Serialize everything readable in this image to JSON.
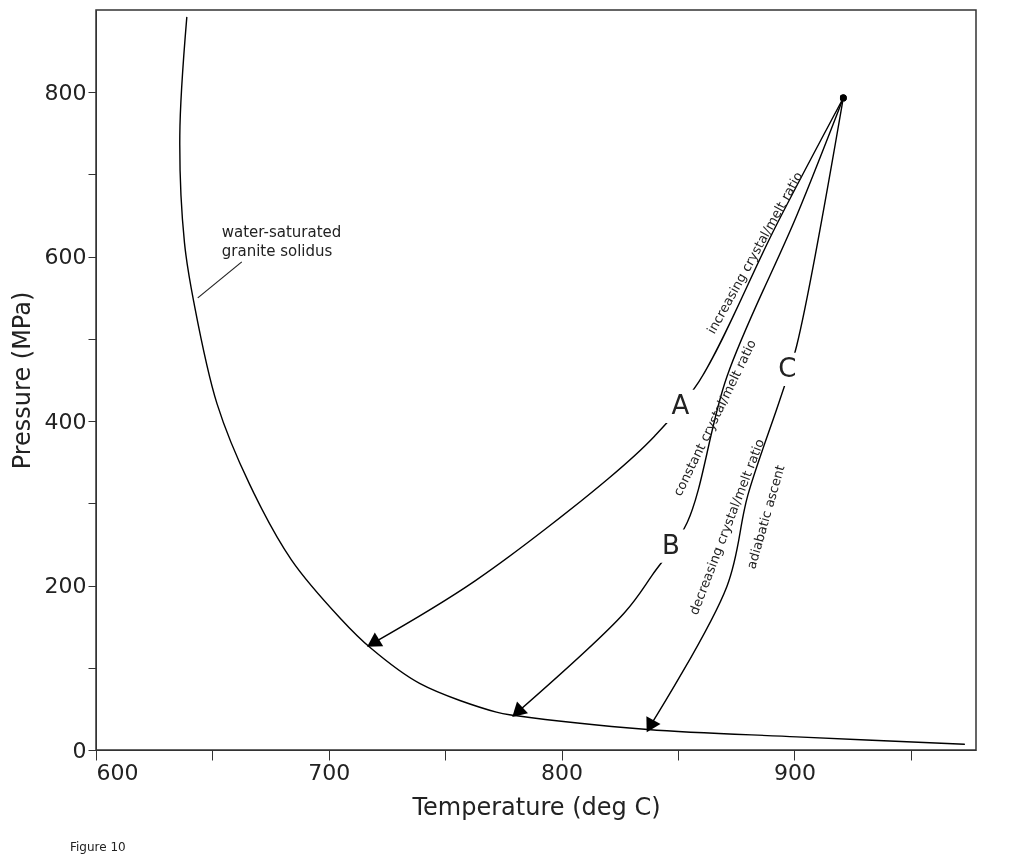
{
  "chart_data": {
    "type": "line",
    "xlabel": "Temperature (deg C)",
    "ylabel": "Pressure (MPa)",
    "xlim": [
      600,
      978
    ],
    "ylim": [
      0,
      900
    ],
    "xticks": [
      600,
      {
        "value": 650,
        "label": null
      },
      700,
      {
        "value": 750,
        "label": null
      },
      800,
      {
        "value": 850,
        "label": null
      },
      900,
      {
        "value": 950,
        "label": null
      }
    ],
    "yticks": [
      0,
      {
        "value": 100,
        "label": null
      },
      200,
      {
        "value": 300,
        "label": null
      },
      400,
      {
        "value": 500,
        "label": null
      },
      600,
      {
        "value": 700,
        "label": null
      },
      800
    ],
    "grid": false,
    "legend": false,
    "marker": "none",
    "line_style": "solid",
    "series": [
      {
        "color": "#000000",
        "x": [
          639,
          636,
          638,
          642,
          652,
          666,
          684,
          705,
          718,
          739,
          772,
          780,
          837,
          901,
          973
        ],
        "values": [
          891,
          747,
          617,
          545,
          421,
          323,
          231,
          160,
          124,
          81,
          46,
          42,
          25,
          16,
          7
        ]
      },
      {
        "color": "#000000",
        "x": [
          921,
          892,
          859,
          840,
          820,
          763,
          719
        ],
        "values": [
          793,
          637,
          448,
          382,
          330,
          206,
          130
        ]
      },
      {
        "color": "#000000",
        "x": [
          921,
          901,
          871,
          854,
          839,
          827,
          781
        ],
        "values": [
          793,
          650,
          454,
          277,
          213,
          167,
          46
        ]
      },
      {
        "color": "#000000",
        "x": [
          921,
          901,
          894,
          880,
          871,
          838
        ],
        "values": [
          793,
          492,
          428,
          310,
          199,
          29
        ]
      }
    ],
    "annotations": [
      {
        "text": "water-saturated\ngranite solidus",
        "x": 642,
        "y": 545
      },
      {
        "text": "A",
        "x": 851,
        "y": 418
      },
      {
        "text": "B",
        "x": 847,
        "y": 248
      },
      {
        "text": "C",
        "x": 897,
        "y": 463
      },
      "increasing crystal/melt ratio",
      "constant crystal/melt ratio",
      "decreasing crystal/melt ratio",
      "adiabatic ascent",
      "Figure 10"
    ]
  }
}
